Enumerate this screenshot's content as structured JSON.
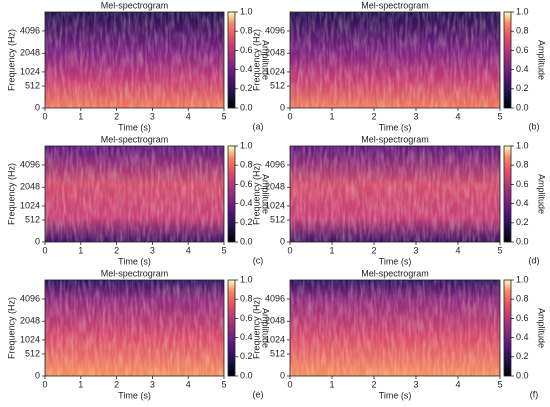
{
  "chart_data": [
    {
      "type": "spectrogram",
      "title": "Mel-spectrogram",
      "xlabel": "Time (s)",
      "ylabel": "Frequency (Hz)",
      "yscale": "mel",
      "xlim": [
        0,
        5
      ],
      "xticks": [
        0,
        1,
        2,
        3,
        4,
        5
      ],
      "ylim": [
        0,
        7000
      ],
      "yticks": [
        0,
        512,
        1024,
        2048,
        4096
      ],
      "colormap": "magma",
      "colorbar_label": "Amplitude",
      "clim": [
        0,
        1
      ],
      "cticks": [
        {
          "value": 0,
          "label": "0.0"
        },
        {
          "value": 0.2,
          "label": "0.2"
        },
        {
          "value": 0.4,
          "label": "0.4"
        },
        {
          "value": 0.6,
          "label": "0.6"
        },
        {
          "value": 0.8,
          "label": "0.8"
        },
        {
          "value": 1,
          "label": "1.0"
        }
      ],
      "label": "(a)"
    },
    {
      "type": "spectrogram",
      "title": "Mel-spectrogram",
      "xlabel": "Time (s)",
      "ylabel": "Frequency (Hz)",
      "yscale": "mel",
      "xlim": [
        0,
        5
      ],
      "xticks": [
        0,
        1,
        2,
        3,
        4,
        5
      ],
      "ylim": [
        0,
        7000
      ],
      "yticks": [
        0,
        512,
        1024,
        2048,
        4096
      ],
      "colormap": "magma",
      "colorbar_label": "Amplitude",
      "clim": [
        0,
        1
      ],
      "cticks": [
        {
          "value": 0,
          "label": "0.0"
        },
        {
          "value": 0.2,
          "label": "0.2"
        },
        {
          "value": 0.4,
          "label": "0.4"
        },
        {
          "value": 0.6,
          "label": "0.6"
        },
        {
          "value": 0.8,
          "label": "0.8"
        },
        {
          "value": 1,
          "label": "1.0"
        }
      ],
      "label": "(b)"
    },
    {
      "type": "spectrogram",
      "title": "Mel-spectrogram",
      "xlabel": "Time (s)",
      "ylabel": "Frequency (Hz)",
      "yscale": "mel",
      "xlim": [
        0,
        5
      ],
      "xticks": [
        0,
        1,
        2,
        3,
        4,
        5
      ],
      "ylim": [
        0,
        7000
      ],
      "yticks": [
        0,
        512,
        1024,
        2048,
        4096
      ],
      "colormap": "magma",
      "colorbar_label": "Amplitude",
      "clim": [
        0,
        1
      ],
      "cticks": [
        {
          "value": 0,
          "label": "0.0"
        },
        {
          "value": 0.2,
          "label": "0.2"
        },
        {
          "value": 0.4,
          "label": "0.4"
        },
        {
          "value": 0.6,
          "label": "0.6"
        },
        {
          "value": 0.8,
          "label": "0.8"
        },
        {
          "value": 1,
          "label": "1.0"
        }
      ],
      "label": "(c)"
    },
    {
      "type": "spectrogram",
      "title": "Mel-spectrogram",
      "xlabel": "Time (s)",
      "ylabel": "Frequency (Hz)",
      "yscale": "mel",
      "xlim": [
        0,
        5
      ],
      "xticks": [
        0,
        1,
        2,
        3,
        4,
        5
      ],
      "ylim": [
        0,
        7000
      ],
      "yticks": [
        0,
        512,
        1024,
        2048,
        4096
      ],
      "colormap": "magma",
      "colorbar_label": "Amplitude",
      "clim": [
        0,
        1
      ],
      "cticks": [
        {
          "value": 0,
          "label": "0.0"
        },
        {
          "value": 0.2,
          "label": "0.2"
        },
        {
          "value": 0.4,
          "label": "0.4"
        },
        {
          "value": 0.6,
          "label": "0.6"
        },
        {
          "value": 0.8,
          "label": "0.8"
        },
        {
          "value": 1,
          "label": "1.0"
        }
      ],
      "label": "(d)"
    },
    {
      "type": "spectrogram",
      "title": "Mel-spectrogram",
      "xlabel": "Time (s)",
      "ylabel": "Frequency (Hz)",
      "yscale": "mel",
      "xlim": [
        0,
        5
      ],
      "xticks": [
        0,
        1,
        2,
        3,
        4,
        5
      ],
      "ylim": [
        0,
        7000
      ],
      "yticks": [
        0,
        512,
        1024,
        2048,
        4096
      ],
      "colormap": "magma",
      "colorbar_label": "Amplitude",
      "clim": [
        0,
        1
      ],
      "cticks": [
        {
          "value": 0,
          "label": "0.0"
        },
        {
          "value": 0.2,
          "label": "0.2"
        },
        {
          "value": 0.4,
          "label": "0.4"
        },
        {
          "value": 0.6,
          "label": "0.6"
        },
        {
          "value": 0.8,
          "label": "0.8"
        },
        {
          "value": 1,
          "label": "1.0"
        }
      ],
      "label": "(e)"
    },
    {
      "type": "spectrogram",
      "title": "Mel-spectrogram",
      "xlabel": "Time (s)",
      "ylabel": "Frequency (Hz)",
      "yscale": "mel",
      "xlim": [
        0,
        5
      ],
      "xticks": [
        0,
        1,
        2,
        3,
        4,
        5
      ],
      "ylim": [
        0,
        7000
      ],
      "yticks": [
        0,
        512,
        1024,
        2048,
        4096
      ],
      "colormap": "magma",
      "colorbar_label": "Amplitude",
      "clim": [
        0,
        1
      ],
      "cticks": [
        {
          "value": 0,
          "label": "0.0"
        },
        {
          "value": 0.2,
          "label": "0.2"
        },
        {
          "value": 0.4,
          "label": "0.4"
        },
        {
          "value": 0.6,
          "label": "0.6"
        },
        {
          "value": 0.8,
          "label": "0.8"
        },
        {
          "value": 1,
          "label": "1.0"
        }
      ],
      "label": "(f)"
    }
  ]
}
